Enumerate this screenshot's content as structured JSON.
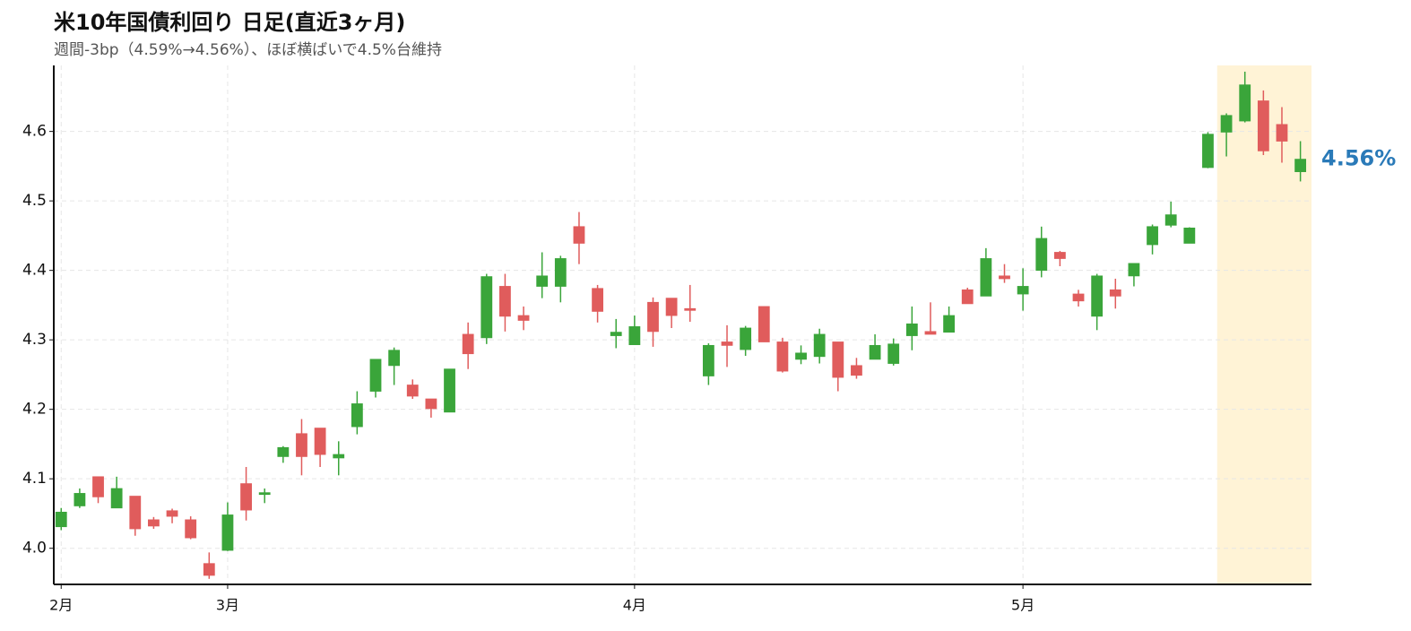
{
  "chart_data": {
    "type": "candlestick",
    "title": "米10年国債利回り 日足(直近3ヶ月)",
    "subtitle": "週間-3bp（4.59%→4.56%）、ほぼ横ばいで4.5%台維持",
    "categories": [
      "2月",
      null,
      null,
      null,
      null,
      null,
      null,
      null,
      null,
      "3月",
      null,
      null,
      null,
      null,
      null,
      null,
      null,
      null,
      null,
      null,
      null,
      null,
      null,
      null,
      null,
      null,
      null,
      null,
      null,
      null,
      null,
      "4月",
      null,
      null,
      null,
      null,
      null,
      null,
      null,
      null,
      null,
      null,
      null,
      null,
      null,
      null,
      null,
      null,
      null,
      null,
      null,
      null,
      "5月",
      null,
      null,
      null,
      null,
      null,
      null,
      null,
      null,
      null,
      null,
      null,
      null,
      null,
      null,
      null
    ],
    "open": [
      4.031,
      4.061,
      4.103,
      4.058,
      4.075,
      4.041,
      4.054,
      4.041,
      3.978,
      3.997,
      4.093,
      4.078,
      4.132,
      4.165,
      4.173,
      4.13,
      4.175,
      4.226,
      4.263,
      4.235,
      4.215,
      4.196,
      4.308,
      4.303,
      4.377,
      4.335,
      4.377,
      4.377,
      4.463,
      4.374,
      4.306,
      4.293,
      4.354,
      4.36,
      4.345,
      4.248,
      4.297,
      4.286,
      4.348,
      4.297,
      4.272,
      4.276,
      4.297,
      4.263,
      4.272,
      4.266,
      4.306,
      4.312,
      4.311,
      4.372,
      4.363,
      4.392,
      4.366,
      4.4,
      4.426,
      4.366,
      4.334,
      4.372,
      4.392,
      4.437,
      4.465,
      4.439,
      4.548,
      4.599,
      4.615,
      4.644,
      4.61,
      4.542
    ],
    "high": [
      4.058,
      4.086,
      4.103,
      4.103,
      4.075,
      4.045,
      4.057,
      4.046,
      3.994,
      4.066,
      4.117,
      4.086,
      4.147,
      4.186,
      4.173,
      4.154,
      4.226,
      4.272,
      4.289,
      4.243,
      4.215,
      4.258,
      4.325,
      4.395,
      4.395,
      4.348,
      4.426,
      4.421,
      4.484,
      4.379,
      4.33,
      4.335,
      4.361,
      4.36,
      4.379,
      4.295,
      4.321,
      4.32,
      4.348,
      4.303,
      4.292,
      4.316,
      4.297,
      4.274,
      4.308,
      4.302,
      4.348,
      4.354,
      4.348,
      4.375,
      4.432,
      4.409,
      4.403,
      4.463,
      4.428,
      4.372,
      4.395,
      4.388,
      4.41,
      4.466,
      4.499,
      4.462,
      4.599,
      4.626,
      4.686,
      4.659,
      4.635,
      4.586
    ],
    "low": [
      4.026,
      4.058,
      4.065,
      4.058,
      4.018,
      4.028,
      4.036,
      4.013,
      3.956,
      3.996,
      4.04,
      4.065,
      4.123,
      4.105,
      4.117,
      4.105,
      4.164,
      4.217,
      4.235,
      4.215,
      4.188,
      4.196,
      4.258,
      4.294,
      4.312,
      4.314,
      4.36,
      4.354,
      4.409,
      4.325,
      4.288,
      4.293,
      4.29,
      4.317,
      4.326,
      4.235,
      4.261,
      4.277,
      4.297,
      4.253,
      4.265,
      4.266,
      4.226,
      4.244,
      4.272,
      4.263,
      4.285,
      4.308,
      4.311,
      4.352,
      4.363,
      4.382,
      4.342,
      4.39,
      4.406,
      4.348,
      4.314,
      4.345,
      4.377,
      4.423,
      4.462,
      4.439,
      4.547,
      4.564,
      4.613,
      4.566,
      4.555,
      4.528
    ],
    "close": [
      4.052,
      4.079,
      4.074,
      4.086,
      4.028,
      4.032,
      4.046,
      4.015,
      3.961,
      4.048,
      4.055,
      4.08,
      4.145,
      4.132,
      4.135,
      4.135,
      4.208,
      4.272,
      4.285,
      4.219,
      4.201,
      4.258,
      4.28,
      4.391,
      4.334,
      4.328,
      4.392,
      4.417,
      4.439,
      4.341,
      4.311,
      4.319,
      4.312,
      4.335,
      4.343,
      4.292,
      4.292,
      4.317,
      4.297,
      4.255,
      4.281,
      4.308,
      4.246,
      4.249,
      4.292,
      4.294,
      4.323,
      4.308,
      4.335,
      4.352,
      4.417,
      4.388,
      4.377,
      4.446,
      4.417,
      4.356,
      4.392,
      4.363,
      4.41,
      4.463,
      4.48,
      4.461,
      4.596,
      4.623,
      4.667,
      4.572,
      4.586,
      4.56
    ],
    "last_label": "4.56%",
    "up_color": "#3aa53a",
    "down_color": "#e05c5c",
    "label_color": "#2a7ab8",
    "highlight_color": "#fff3d6",
    "ylim": [
      3.948,
      4.695
    ],
    "yticks": [
      {
        "value": 4,
        "label": "4.0"
      },
      4.1,
      4.2,
      4.3,
      4.4,
      4.5,
      4.6
    ],
    "grid": true
  }
}
